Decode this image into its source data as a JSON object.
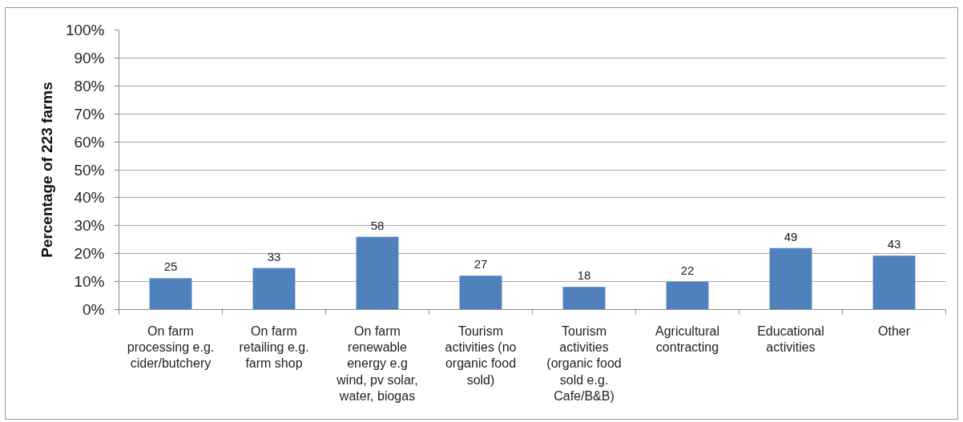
{
  "chart_data": {
    "type": "bar",
    "ylabel": "Percentage of 223 farms",
    "categories": [
      "On farm processing e.g. cider/butchery",
      "On farm retailing e.g. farm shop",
      "On farm renewable energy e.g wind, pv solar, water, biogas",
      "Tourism activities (no organic food sold)",
      "Tourism activities (organic food sold e.g. Cafe/B&B)",
      "Agricultural contracting",
      "Educational activities",
      "Other"
    ],
    "values": [
      11.2,
      14.8,
      26.0,
      12.1,
      8.1,
      9.9,
      22.0,
      19.3
    ],
    "annotations": [
      {
        "text": "25",
        "x": "On farm processing e.g. cider/butchery",
        "y": 11.2
      },
      {
        "text": "33",
        "x": "On farm retailing e.g. farm shop",
        "y": 14.8
      },
      {
        "text": "58",
        "x": "On farm renewable energy e.g wind, pv solar, water, biogas",
        "y": 26.0
      },
      {
        "text": "27",
        "x": "Tourism activities (no organic food sold)",
        "y": 12.1
      },
      {
        "text": "18",
        "x": "Tourism activities (organic food sold e.g. Cafe/B&B)",
        "y": 8.1
      },
      {
        "text": "22",
        "x": "Agricultural contracting",
        "y": 9.9
      },
      {
        "text": "49",
        "x": "Educational activities",
        "y": 22.0
      },
      {
        "text": "43",
        "x": "Other",
        "y": 19.3
      }
    ],
    "color": "#4f81bd",
    "ylim": [
      0,
      100
    ],
    "yticks": [
      {
        "value": 0,
        "label": "0%"
      },
      {
        "value": 10,
        "label": "10%"
      },
      {
        "value": 20,
        "label": "20%"
      },
      {
        "value": 30,
        "label": "30%"
      },
      {
        "value": 40,
        "label": "40%"
      },
      {
        "value": 50,
        "label": "50%"
      },
      {
        "value": 60,
        "label": "60%"
      },
      {
        "value": 70,
        "label": "70%"
      },
      {
        "value": 80,
        "label": "80%"
      },
      {
        "value": 90,
        "label": "90%"
      },
      {
        "value": 100,
        "label": "100%"
      }
    ],
    "grid": "y"
  }
}
